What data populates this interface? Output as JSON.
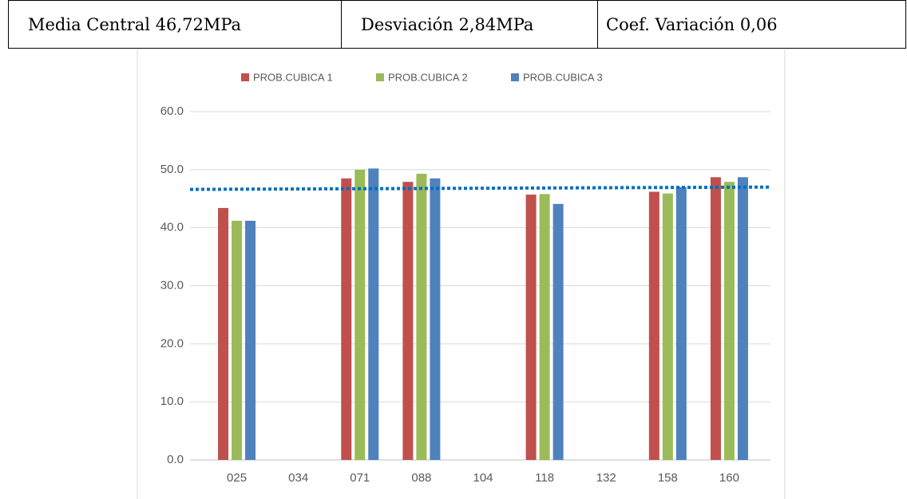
{
  "header": {
    "cells": [
      "Media Central 46,72MPa",
      "Desviación 2,84MPa",
      "Coef. Variación 0,06"
    ]
  },
  "chart_data": {
    "type": "bar",
    "categories": [
      "025",
      "034",
      "071",
      "088",
      "104",
      "118",
      "132",
      "158",
      "160"
    ],
    "series": [
      {
        "name": "PROB.CUBICA 1",
        "color": "#c0504d",
        "values": [
          43.4,
          null,
          48.5,
          47.9,
          null,
          45.7,
          null,
          46.2,
          48.7
        ]
      },
      {
        "name": "PROB.CUBICA 2",
        "color": "#9bbb59",
        "values": [
          41.2,
          null,
          50.0,
          49.3,
          null,
          45.8,
          null,
          45.9,
          47.9
        ]
      },
      {
        "name": "PROB.CUBICA 3",
        "color": "#4f81bd",
        "values": [
          41.2,
          null,
          50.2,
          48.5,
          null,
          44.1,
          null,
          47.0,
          48.7
        ]
      }
    ],
    "reference_line": {
      "color": "#0070c0",
      "start": 46.6,
      "end": 47.0
    },
    "ylim": [
      0,
      60
    ],
    "yticks": [
      {
        "value": 0,
        "label": "0.0"
      },
      {
        "value": 10,
        "label": "10.0"
      },
      {
        "value": 20,
        "label": "20.0"
      },
      {
        "value": 30,
        "label": "30.0"
      },
      {
        "value": 40,
        "label": "40.0"
      },
      {
        "value": 50,
        "label": "50.0"
      },
      {
        "value": 60,
        "label": "60.0"
      }
    ],
    "grid": true,
    "legend": "top"
  }
}
